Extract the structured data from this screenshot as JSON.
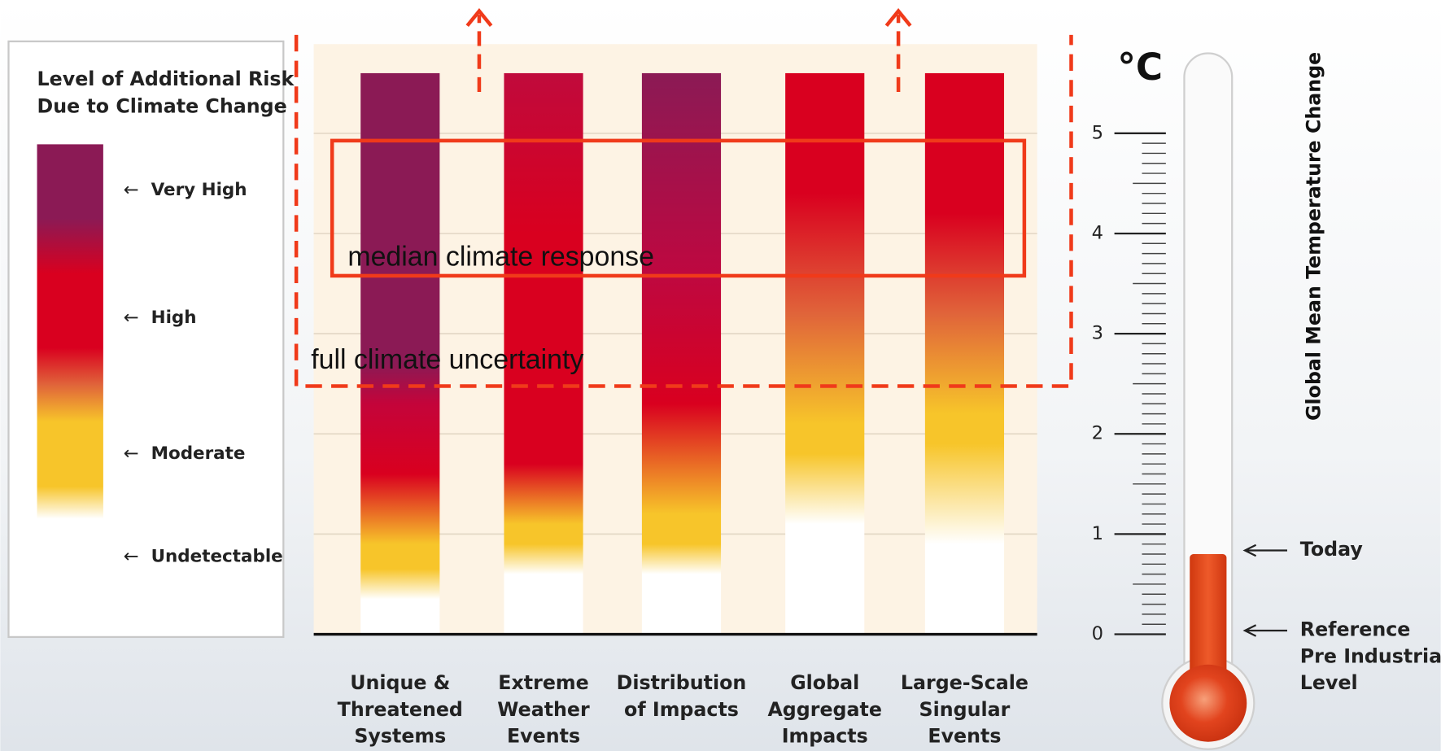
{
  "legend": {
    "title_lines": [
      "Level of Additional Risk",
      "Due to Climate Change"
    ],
    "levels": [
      {
        "label": "Very High"
      },
      {
        "label": "High"
      },
      {
        "label": "Moderate"
      },
      {
        "label": "Undetectable"
      }
    ]
  },
  "chart_data": {
    "type": "ember",
    "unit": "°C",
    "axis_label": "Global Mean Temperature Change",
    "categories": [
      [
        "Unique &",
        "Threatened",
        "Systems"
      ],
      [
        "Extreme",
        "Weather",
        "Events"
      ],
      [
        "Distribution",
        "of Impacts"
      ],
      [
        "Global",
        "Aggregate",
        "Impacts"
      ],
      [
        "Large-Scale",
        "Singular",
        "Events"
      ]
    ],
    "ylim": [
      0,
      5.6
    ],
    "yticks": [
      0,
      1,
      2,
      3,
      4,
      5
    ],
    "embers": [
      [
        {
          "t": 0,
          "color": "#ffffff"
        },
        {
          "t": 0.35,
          "color": "#ffffff"
        },
        {
          "t": 0.65,
          "color": "#f7c52a"
        },
        {
          "t": 0.9,
          "color": "#f7c52a"
        },
        {
          "t": 1.6,
          "color": "#d9001f"
        },
        {
          "t": 2.3,
          "color": "#c4043a"
        },
        {
          "t": 2.7,
          "color": "#8b1a55"
        },
        {
          "t": 5.6,
          "color": "#8b1a55"
        }
      ],
      [
        {
          "t": 0,
          "color": "#ffffff"
        },
        {
          "t": 0.6,
          "color": "#ffffff"
        },
        {
          "t": 0.9,
          "color": "#f7c52a"
        },
        {
          "t": 1.1,
          "color": "#f7c52a"
        },
        {
          "t": 1.7,
          "color": "#d9001f"
        },
        {
          "t": 4.0,
          "color": "#d9001f"
        },
        {
          "t": 5.6,
          "color": "#c00a3c"
        }
      ],
      [
        {
          "t": 0,
          "color": "#ffffff"
        },
        {
          "t": 0.6,
          "color": "#ffffff"
        },
        {
          "t": 0.9,
          "color": "#f7c52a"
        },
        {
          "t": 1.2,
          "color": "#f7c52a"
        },
        {
          "t": 2.3,
          "color": "#d9001f"
        },
        {
          "t": 3.6,
          "color": "#be0840"
        },
        {
          "t": 5.6,
          "color": "#8b1a55"
        }
      ],
      [
        {
          "t": 0,
          "color": "#ffffff"
        },
        {
          "t": 1.1,
          "color": "#ffffff"
        },
        {
          "t": 1.8,
          "color": "#f7c52a"
        },
        {
          "t": 2.1,
          "color": "#f7c52a"
        },
        {
          "t": 3.2,
          "color": "#e0643a"
        },
        {
          "t": 4.4,
          "color": "#d9001f"
        },
        {
          "t": 5.6,
          "color": "#d9001f"
        }
      ],
      [
        {
          "t": 0,
          "color": "#ffffff"
        },
        {
          "t": 0.9,
          "color": "#ffffff"
        },
        {
          "t": 1.9,
          "color": "#f7c52a"
        },
        {
          "t": 2.2,
          "color": "#f7c52a"
        },
        {
          "t": 3.2,
          "color": "#e0643a"
        },
        {
          "t": 4.2,
          "color": "#d9001f"
        },
        {
          "t": 5.6,
          "color": "#d9001f"
        }
      ]
    ],
    "annotations": [
      "median climate response",
      "full climate uncertainty"
    ],
    "markers": [
      {
        "label_lines": [
          "Today"
        ],
        "value": 0.8
      },
      {
        "label_lines": [
          "Reference",
          "Pre Industrial",
          "Level"
        ],
        "value": 0
      }
    ]
  }
}
